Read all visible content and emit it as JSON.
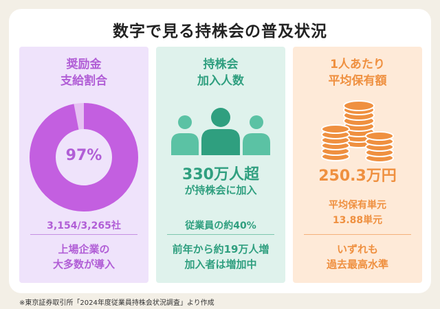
{
  "title": "数字で見る持株会の普及状況",
  "panels": [
    {
      "title_lines": [
        "奨励金",
        "支給割合"
      ],
      "donut": {
        "percent_label": "97%",
        "fill_fraction": 0.97,
        "color": "#c35fe0",
        "rest_color": "#e6c1f2"
      },
      "count": "3,154/3,265社",
      "bottom_lines": [
        "上場企業の",
        "大多数が導入"
      ]
    },
    {
      "title_lines": [
        "持株会",
        "加入人数"
      ],
      "icon": "people-group-icon",
      "big": "330万人超",
      "big_sub": "が持株会に加入",
      "mid": "従業員の約40%",
      "bottom_lines": [
        "前年から約19万人増",
        "加入者は増加中"
      ]
    },
    {
      "title_lines": [
        "1人あたり",
        "平均保有額"
      ],
      "icon": "coin-stacks-icon",
      "big": "250.3万円",
      "mid_lines": [
        "平均保有単元",
        "13.88単元"
      ],
      "bottom_lines": [
        "いずれも",
        "過去最高水準"
      ]
    }
  ],
  "footnote": "※東京証券取引所「2024年度従業員持株会状況調査」より作成",
  "colors": {
    "purple": "#b15ed6",
    "green": "#2f9f7f",
    "orange": "#ef9040"
  }
}
